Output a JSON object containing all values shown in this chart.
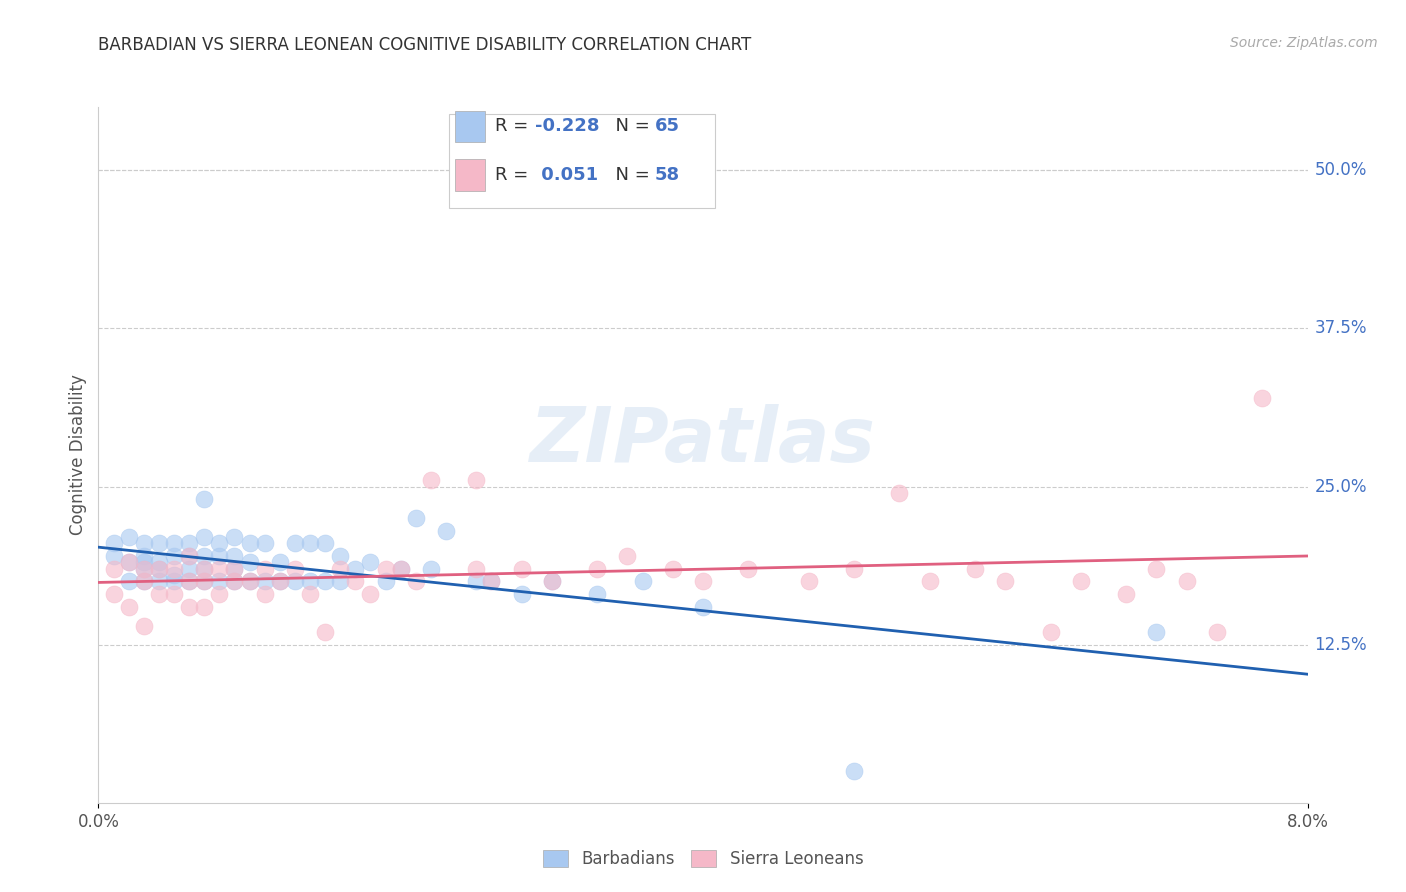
{
  "title": "BARBADIAN VS SIERRA LEONEAN COGNITIVE DISABILITY CORRELATION CHART",
  "source": "Source: ZipAtlas.com",
  "ylabel": "Cognitive Disability",
  "ytick_labels": [
    "12.5%",
    "25.0%",
    "37.5%",
    "50.0%"
  ],
  "ytick_values": [
    0.125,
    0.25,
    0.375,
    0.5
  ],
  "xlim": [
    0.0,
    0.08
  ],
  "ylim": [
    0.0,
    0.55
  ],
  "xtick_left_label": "0.0%",
  "xtick_right_label": "8.0%",
  "barbadian_color": "#A8C8F0",
  "sierra_color": "#F5B8C8",
  "trend_blue": "#2060B0",
  "trend_pink": "#E06080",
  "watermark": "ZIPatlas",
  "legend_label_blue": "R = -0.228   N = 65",
  "legend_label_pink": "R =  0.051   N = 58",
  "legend_label_blue_r": "-0.228",
  "legend_label_blue_n": "65",
  "legend_label_pink_r": "0.051",
  "legend_label_pink_n": "58",
  "bottom_legend_blue": "Barbadians",
  "bottom_legend_pink": "Sierra Leoneans",
  "barbadian_x": [
    0.001,
    0.001,
    0.002,
    0.002,
    0.002,
    0.003,
    0.003,
    0.003,
    0.003,
    0.003,
    0.004,
    0.004,
    0.004,
    0.004,
    0.005,
    0.005,
    0.005,
    0.005,
    0.006,
    0.006,
    0.006,
    0.006,
    0.007,
    0.007,
    0.007,
    0.007,
    0.007,
    0.008,
    0.008,
    0.008,
    0.009,
    0.009,
    0.009,
    0.009,
    0.01,
    0.01,
    0.01,
    0.011,
    0.011,
    0.012,
    0.012,
    0.013,
    0.013,
    0.014,
    0.014,
    0.015,
    0.015,
    0.016,
    0.016,
    0.017,
    0.018,
    0.019,
    0.02,
    0.021,
    0.022,
    0.023,
    0.025,
    0.026,
    0.028,
    0.03,
    0.033,
    0.036,
    0.04,
    0.07,
    0.05
  ],
  "barbadian_y": [
    0.205,
    0.195,
    0.21,
    0.19,
    0.175,
    0.205,
    0.195,
    0.185,
    0.175,
    0.19,
    0.205,
    0.19,
    0.175,
    0.185,
    0.205,
    0.195,
    0.18,
    0.175,
    0.205,
    0.195,
    0.185,
    0.175,
    0.24,
    0.21,
    0.195,
    0.185,
    0.175,
    0.205,
    0.195,
    0.175,
    0.21,
    0.195,
    0.185,
    0.175,
    0.205,
    0.19,
    0.175,
    0.205,
    0.175,
    0.19,
    0.175,
    0.205,
    0.175,
    0.205,
    0.175,
    0.205,
    0.175,
    0.195,
    0.175,
    0.185,
    0.19,
    0.175,
    0.185,
    0.225,
    0.185,
    0.215,
    0.175,
    0.175,
    0.165,
    0.175,
    0.165,
    0.175,
    0.155,
    0.135,
    0.025
  ],
  "sierra_x": [
    0.001,
    0.001,
    0.002,
    0.002,
    0.003,
    0.003,
    0.003,
    0.004,
    0.004,
    0.005,
    0.005,
    0.006,
    0.006,
    0.006,
    0.007,
    0.007,
    0.007,
    0.008,
    0.008,
    0.009,
    0.009,
    0.01,
    0.011,
    0.011,
    0.012,
    0.013,
    0.014,
    0.015,
    0.016,
    0.017,
    0.018,
    0.019,
    0.02,
    0.021,
    0.022,
    0.025,
    0.025,
    0.026,
    0.028,
    0.03,
    0.033,
    0.035,
    0.038,
    0.04,
    0.043,
    0.047,
    0.05,
    0.053,
    0.055,
    0.058,
    0.06,
    0.063,
    0.065,
    0.068,
    0.07,
    0.072,
    0.074,
    0.077
  ],
  "sierra_y": [
    0.185,
    0.165,
    0.19,
    0.155,
    0.185,
    0.175,
    0.14,
    0.185,
    0.165,
    0.185,
    0.165,
    0.195,
    0.175,
    0.155,
    0.185,
    0.175,
    0.155,
    0.185,
    0.165,
    0.185,
    0.175,
    0.175,
    0.185,
    0.165,
    0.175,
    0.185,
    0.165,
    0.135,
    0.185,
    0.175,
    0.165,
    0.185,
    0.185,
    0.175,
    0.255,
    0.185,
    0.255,
    0.175,
    0.185,
    0.175,
    0.185,
    0.195,
    0.185,
    0.175,
    0.185,
    0.175,
    0.185,
    0.245,
    0.175,
    0.185,
    0.175,
    0.135,
    0.175,
    0.165,
    0.185,
    0.175,
    0.135,
    0.32
  ]
}
